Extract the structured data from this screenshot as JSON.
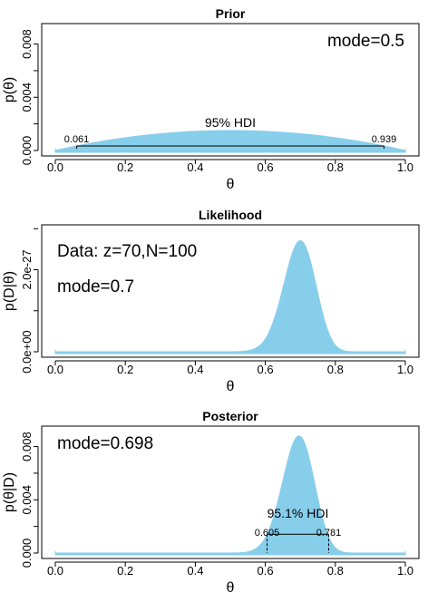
{
  "colors": {
    "fill": "#87CEEB",
    "axis": "#000000",
    "background": "#ffffff"
  },
  "chart_data": [
    {
      "type": "area",
      "title": "Prior",
      "xlabel": "θ",
      "ylabel": "p(θ)",
      "xlim": [
        0,
        1
      ],
      "ylim": [
        0,
        0.0094
      ],
      "x_ticks": [
        "0.0",
        "0.2",
        "0.4",
        "0.6",
        "0.8",
        "1.0"
      ],
      "y_ticks": [
        "0.000",
        "0.004",
        "0.008"
      ],
      "distribution": {
        "family": "beta",
        "a": 2,
        "b": 2,
        "peak": 0.0015
      },
      "annotations": {
        "mode": "mode=0.5"
      },
      "hdi": {
        "label": "95% HDI",
        "low": 0.061,
        "high": 0.939,
        "low_label": "0.061",
        "high_label": "0.939"
      }
    },
    {
      "type": "area",
      "title": "Likelihood",
      "xlabel": "θ",
      "ylabel": "p(D|θ)",
      "xlim": [
        0,
        1
      ],
      "ylim": [
        0,
        3.05e-27
      ],
      "x_ticks": [
        "0.0",
        "0.2",
        "0.4",
        "0.6",
        "0.8",
        "1.0"
      ],
      "y_ticks": [
        "0.0e+00",
        "2.0e-27"
      ],
      "distribution": {
        "family": "beta",
        "a": 71,
        "b": 31,
        "peak": 2.71e-27
      },
      "annotations": {
        "data": "Data: z=70,N=100",
        "mode": "mode=0.7"
      }
    },
    {
      "type": "area",
      "title": "Posterior",
      "xlabel": "θ",
      "ylabel": "p(θ|D)",
      "xlim": [
        0,
        1
      ],
      "ylim": [
        0,
        0.0094
      ],
      "x_ticks": [
        "0.0",
        "0.2",
        "0.4",
        "0.6",
        "0.8",
        "1.0"
      ],
      "y_ticks": [
        "0.000",
        "0.004",
        "0.008"
      ],
      "distribution": {
        "family": "beta",
        "a": 72,
        "b": 32,
        "peak": 0.0088
      },
      "annotations": {
        "mode": "mode=0.698"
      },
      "hdi": {
        "label": "95.1% HDI",
        "low": 0.605,
        "high": 0.781,
        "low_label": "0.605",
        "high_label": "0.781"
      }
    }
  ]
}
